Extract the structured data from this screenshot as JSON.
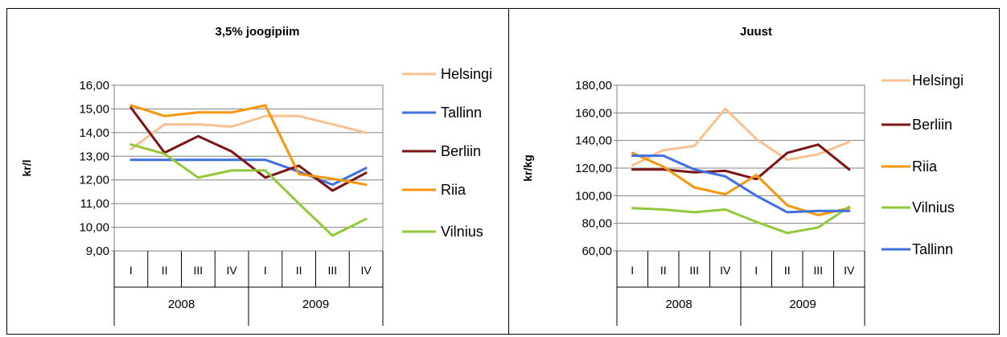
{
  "colors": {
    "Helsingi": "#FAC090",
    "Tallinn": "#3F6FE0",
    "Berliin": "#7B1414",
    "Riia": "#F7960C",
    "Vilnius": "#92C83A"
  },
  "chart_data": [
    {
      "type": "line",
      "title": "3,5% joogipiim",
      "ylabel": "kr/l",
      "ylim": [
        9,
        16
      ],
      "ystep": 1,
      "ytick_labels": [
        "9,00",
        "10,00",
        "11,00",
        "12,00",
        "13,00",
        "14,00",
        "15,00",
        "16,00"
      ],
      "grid": true,
      "legend": "right",
      "categories": [
        "I",
        "II",
        "III",
        "IV",
        "I",
        "II",
        "III",
        "IV"
      ],
      "years": [
        "2008",
        "2009"
      ],
      "series": [
        {
          "name": "Helsingi",
          "values": [
            13.3,
            14.35,
            14.35,
            14.25,
            14.7,
            14.7,
            14.35,
            14.0
          ]
        },
        {
          "name": "Tallinn",
          "values": [
            12.85,
            12.85,
            12.85,
            12.85,
            12.85,
            12.35,
            11.8,
            12.5
          ]
        },
        {
          "name": "Berliin",
          "values": [
            15.05,
            13.15,
            13.85,
            13.2,
            12.1,
            12.6,
            11.55,
            12.3
          ]
        },
        {
          "name": "Riia",
          "values": [
            15.15,
            14.7,
            14.85,
            14.85,
            15.15,
            12.25,
            12.05,
            11.8
          ]
        },
        {
          "name": "Vilnius",
          "values": [
            13.5,
            13.1,
            12.1,
            12.4,
            12.4,
            11.0,
            9.65,
            10.35
          ]
        }
      ]
    },
    {
      "type": "line",
      "title": "Juust",
      "ylabel": "kr/kg",
      "ylim": [
        60,
        180
      ],
      "ystep": 20,
      "ytick_labels": [
        "60,00",
        "80,00",
        "100,00",
        "120,00",
        "140,00",
        "160,00",
        "180,00"
      ],
      "grid": true,
      "legend": "right",
      "categories": [
        "I",
        "II",
        "III",
        "IV",
        "I",
        "II",
        "III",
        "IV"
      ],
      "years": [
        "2008",
        "2009"
      ],
      "series": [
        {
          "name": "Helsingi",
          "values": [
            122,
            133,
            136,
            163,
            141,
            126,
            130,
            139
          ]
        },
        {
          "name": "Berliin",
          "values": [
            119,
            119,
            117,
            118,
            112,
            131,
            137,
            119
          ]
        },
        {
          "name": "Riia",
          "values": [
            131,
            121,
            106,
            101,
            115,
            93,
            86,
            91
          ]
        },
        {
          "name": "Vilnius",
          "values": [
            91,
            90,
            88,
            90,
            81,
            73,
            77,
            92
          ]
        },
        {
          "name": "Tallinn",
          "values": [
            129,
            129,
            119,
            114,
            100,
            88,
            89,
            89
          ]
        }
      ]
    }
  ]
}
